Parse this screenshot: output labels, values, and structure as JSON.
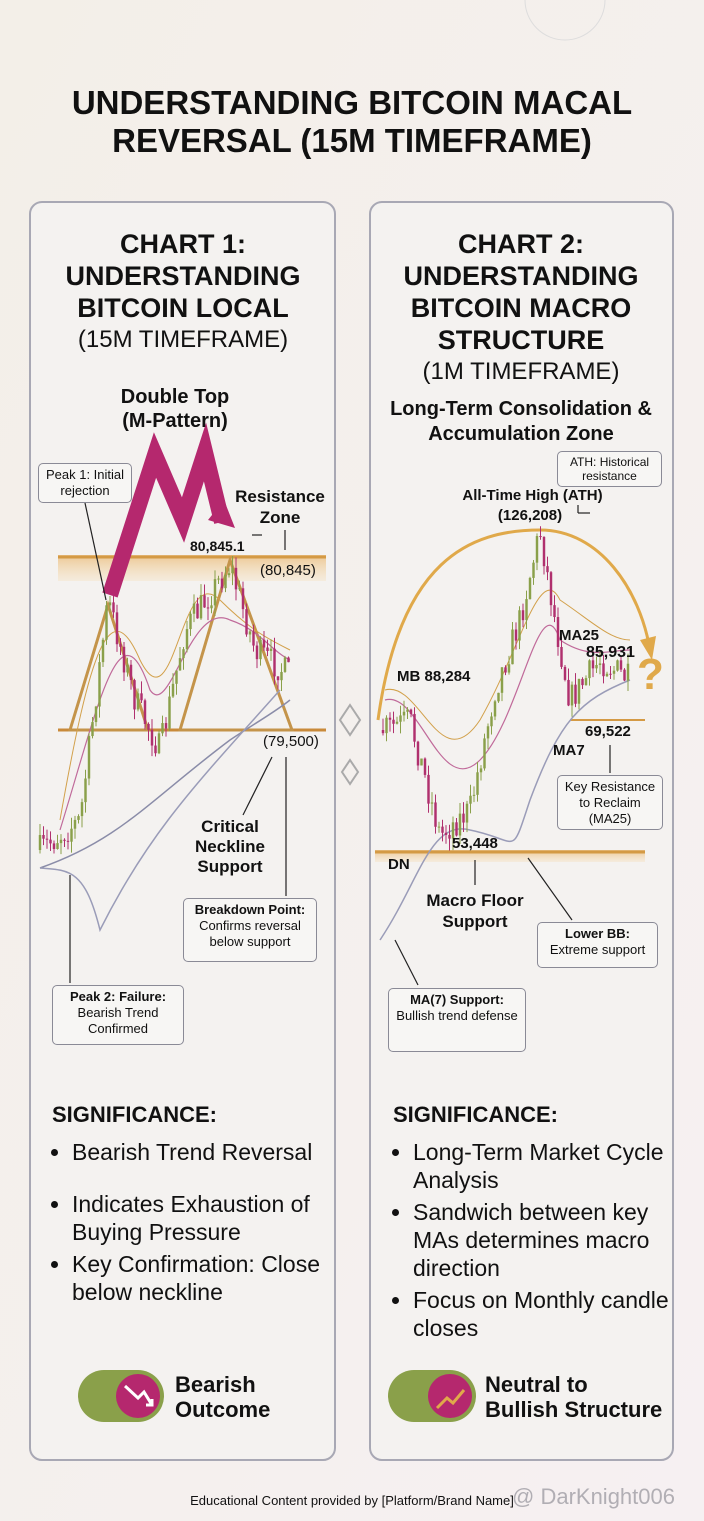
{
  "title": "UNDERSTANDING BITCOIN MACAL REVERSAL (15M TIMEFRAME)",
  "panels": [
    {
      "heading": "CHART 1: UNDERSTANDING BITCOIN LOCAL",
      "timeframe": "(15M TIMEFRAME)",
      "pattern": "Double Top (M-Pattern)",
      "peak1": "Peak 1: Initial rejection",
      "resistance": "Resistance Zone",
      "peak_value": "80,845.1",
      "resistance_value": "(80,845)",
      "support_value": "(79,500)",
      "neckline": "Critical Neckline Support",
      "breakdown_title": "Breakdown Point:",
      "breakdown_text": "Confirms reversal below support",
      "peak2_title": "Peak 2: Failure:",
      "peak2_text": "Bearish Trend Confirmed",
      "significance": "SIGNIFICANCE:",
      "bullets": [
        "Bearish Trend Reversal",
        "Indicates Exhaustion of Buying Pressure",
        "Key Confirmation: Close below neckline"
      ],
      "outcome": "Bearish Outcome"
    },
    {
      "heading": "CHART 2: UNDERSTANDING BITCOIN MACRO STRUCTURE",
      "timeframe": "(1M TIMEFRAME)",
      "zone": "Long-Term Consolidation & Accumulation Zone",
      "ath_note": "ATH: Historical resistance",
      "ath": "All-Time High (ATH)",
      "ath_value": "(126,208)",
      "ma25": "MA25",
      "ma25_value": "85,931",
      "mb": "MB 88,284",
      "ma7_value": "69,522",
      "ma7": "MA7",
      "key_resistance": "Key Resistance to Reclaim (MA25)",
      "low_value": "53,448",
      "dn": "DN",
      "floor": "Macro Floor Support",
      "lower_bb_title": "Lower BB:",
      "lower_bb_text": "Extreme support",
      "ma7_support_title": "MA(7) Support:",
      "ma7_support_text": "Bullish trend defense",
      "question": "?",
      "significance": "SIGNIFICANCE:",
      "bullets": [
        "Long-Term Market Cycle Analysis",
        "Sandwich between key MAs determines macro direction",
        "Focus on Monthly candle closes"
      ],
      "outcome": "Neutral to Bullish Structure"
    }
  ],
  "footer": "Educational Content provided by [Platform/Brand Name]",
  "watermark": "@ DarKnight006"
}
